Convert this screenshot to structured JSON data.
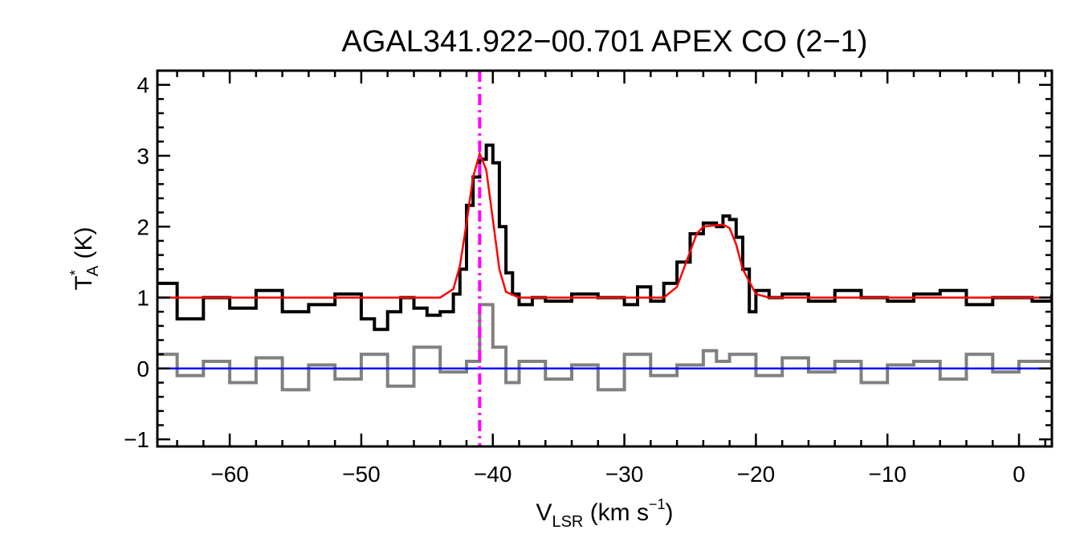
{
  "chart_data": {
    "type": "line",
    "title": "AGAL341.922−00.701  APEX CO (2−1)",
    "xlabel": {
      "main": "V",
      "sub": "LSR",
      "unit_pre": " (km s",
      "sup": "−1",
      "unit_post": ")"
    },
    "ylabel": {
      "main": "T",
      "sup": "*",
      "sub": "A",
      "unit": " (K)"
    },
    "xlim": [
      -65.5,
      2.5
    ],
    "ylim": [
      -1.1,
      4.2
    ],
    "xticks": [
      -60,
      -50,
      -40,
      -30,
      -20,
      -10,
      0
    ],
    "xtick_labels": [
      "−60",
      "−50",
      "−40",
      "−30",
      "−20",
      "−10",
      "0"
    ],
    "yticks": [
      -1,
      0,
      1,
      2,
      3,
      4
    ],
    "ytick_labels": [
      "−1",
      "0",
      "1",
      "2",
      "3",
      "4"
    ],
    "x_minor_step": 2,
    "y_minor_step": 0.2,
    "grid": false,
    "reference_velocity": -41.0,
    "baseline": 0,
    "series": [
      {
        "role": "observed-spectrum",
        "color": "#000000",
        "x": [
          -65.5,
          -64.0,
          -62.0,
          -60.0,
          -58.0,
          -56.0,
          -54.0,
          -52.0,
          -50.0,
          -49.0,
          -48.0,
          -47.0,
          -46.0,
          -45.0,
          -44.0,
          -43.0,
          -42.5,
          -42.0,
          -41.5,
          -41.0,
          -40.5,
          -40.0,
          -39.5,
          -39.0,
          -38.5,
          -38.0,
          -37.0,
          -36.0,
          -34.0,
          -32.0,
          -30.0,
          -29.0,
          -28.0,
          -27.0,
          -26.0,
          -25.0,
          -24.0,
          -23.0,
          -22.5,
          -22.0,
          -21.5,
          -21.0,
          -20.5,
          -20.0,
          -19.0,
          -18.0,
          -16.0,
          -14.0,
          -12.0,
          -10.0,
          -8.0,
          -6.0,
          -4.0,
          -2.0,
          0.0,
          1.0,
          2.5
        ],
        "y": [
          1.2,
          0.7,
          1.0,
          0.85,
          1.1,
          0.8,
          0.9,
          1.05,
          0.7,
          0.55,
          0.8,
          1.0,
          0.85,
          0.75,
          0.8,
          1.05,
          1.4,
          2.3,
          2.7,
          2.95,
          3.15,
          2.9,
          2.0,
          1.35,
          1.05,
          0.9,
          1.0,
          0.95,
          1.05,
          1.0,
          0.9,
          1.15,
          0.95,
          1.2,
          1.5,
          1.9,
          2.05,
          2.0,
          2.15,
          2.1,
          1.85,
          1.4,
          0.8,
          1.1,
          1.0,
          1.05,
          0.95,
          1.1,
          1.0,
          0.95,
          1.05,
          1.1,
          0.9,
          1.0,
          1.0,
          0.95,
          1.05
        ]
      },
      {
        "role": "gaussian-fit",
        "color": "#ff0000",
        "x": [
          -65.5,
          -44.0,
          -43.0,
          -42.5,
          -42.0,
          -41.5,
          -41.0,
          -40.5,
          -40.0,
          -39.5,
          -39.0,
          -38.0,
          -27.0,
          -26.0,
          -25.0,
          -24.5,
          -24.0,
          -23.0,
          -22.5,
          -22.0,
          -21.5,
          -21.0,
          -20.0,
          -19.0,
          2.5
        ],
        "y": [
          1.0,
          1.0,
          1.12,
          1.45,
          2.05,
          2.7,
          3.03,
          2.8,
          2.1,
          1.4,
          1.08,
          1.0,
          1.0,
          1.15,
          1.65,
          1.9,
          2.0,
          2.02,
          2.03,
          1.98,
          1.75,
          1.4,
          1.05,
          1.0,
          1.0
        ]
      },
      {
        "role": "residual",
        "color": "#808080",
        "x": [
          -65.5,
          -64.0,
          -62.0,
          -60.0,
          -58.0,
          -56.0,
          -54.0,
          -52.0,
          -50.0,
          -48.0,
          -46.0,
          -44.0,
          -42.0,
          -41.0,
          -40.0,
          -39.0,
          -38.0,
          -36.0,
          -34.0,
          -32.0,
          -30.0,
          -28.0,
          -26.0,
          -24.0,
          -23.0,
          -22.0,
          -20.0,
          -18.0,
          -16.0,
          -14.0,
          -12.0,
          -10.0,
          -8.0,
          -6.0,
          -4.0,
          -2.0,
          0.0,
          2.5
        ],
        "y": [
          0.2,
          -0.1,
          0.1,
          -0.2,
          0.15,
          -0.3,
          0.05,
          -0.15,
          0.2,
          -0.25,
          0.3,
          -0.05,
          0.1,
          0.9,
          0.3,
          -0.2,
          0.1,
          -0.15,
          0.05,
          -0.3,
          0.2,
          -0.1,
          0.05,
          0.25,
          0.1,
          0.2,
          -0.1,
          0.15,
          -0.05,
          0.1,
          -0.2,
          0.05,
          0.1,
          -0.15,
          0.2,
          -0.05,
          0.1,
          0.0
        ]
      },
      {
        "role": "zero-line",
        "color": "#0000ff",
        "x": [
          -65.5,
          2.5
        ],
        "y": [
          0,
          0
        ]
      }
    ],
    "reference_line_color": "#ff00ff"
  }
}
